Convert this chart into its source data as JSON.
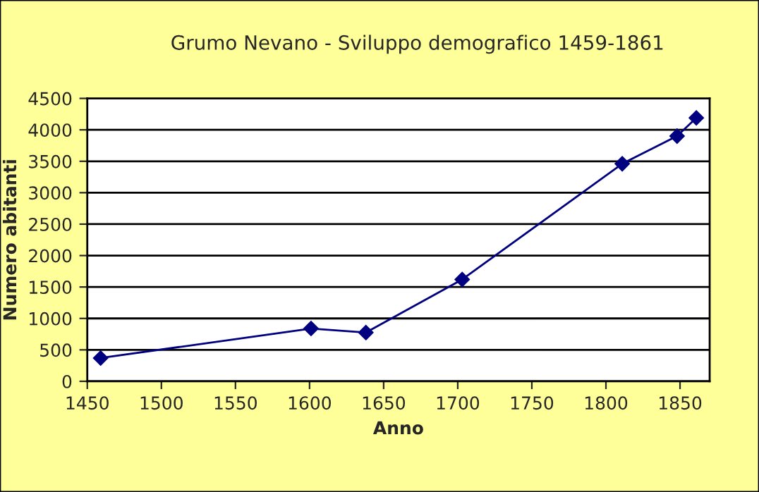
{
  "chart_data": {
    "type": "line",
    "title": "Grumo Nevano - Sviluppo demografico 1459-1861",
    "xlabel": "Anno",
    "ylabel": "Numero abitanti",
    "x": [
      1459,
      1601,
      1638,
      1703,
      1811,
      1848,
      1861
    ],
    "series": [
      {
        "color": "#000080",
        "values": [
          370,
          840,
          775,
          1620,
          3460,
          3900,
          4190
        ]
      }
    ],
    "xlim": [
      1450,
      1870
    ],
    "xticks": [
      1450,
      1500,
      1550,
      1600,
      1650,
      1700,
      1750,
      1800,
      1850
    ],
    "ylim": [
      0,
      4500
    ],
    "yticks": [
      0,
      500,
      1000,
      1500,
      2000,
      2500,
      3000,
      3500,
      4000,
      4500
    ],
    "grid": "y",
    "marker": "diamond",
    "line_style": "solid"
  }
}
